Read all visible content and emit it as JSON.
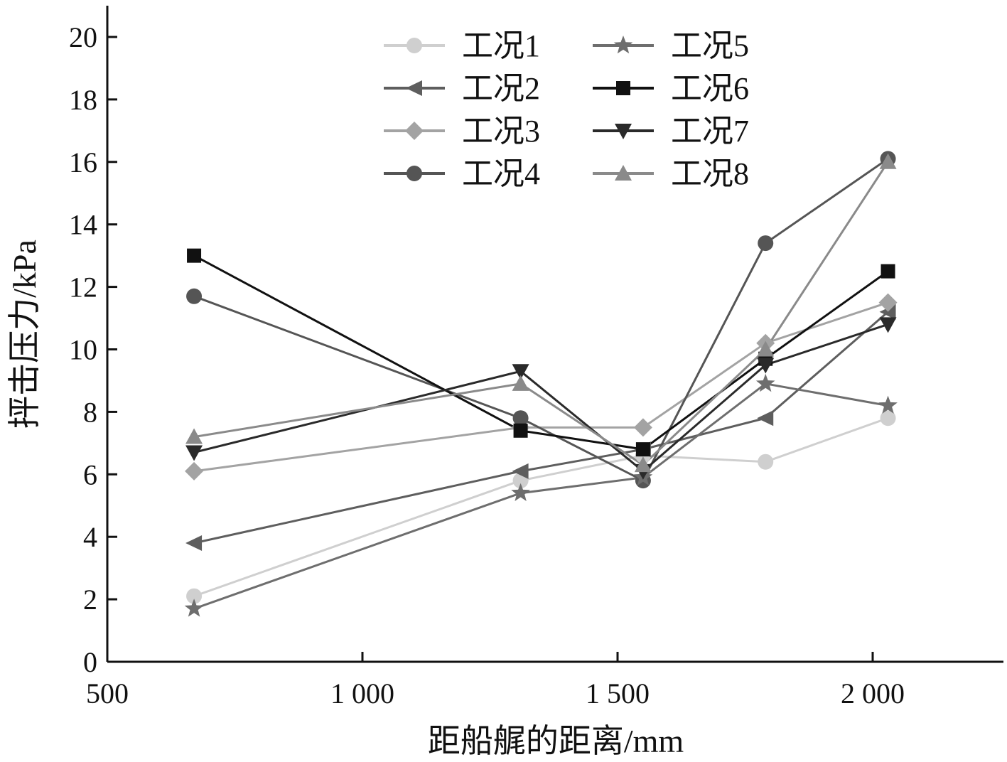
{
  "chart_data": {
    "type": "line",
    "xlabel": "距船艉的距离/mm",
    "ylabel": "抨击压力/kPa",
    "xlim": [
      500,
      2250
    ],
    "ylim": [
      0,
      20
    ],
    "x_ticks": [
      500,
      1000,
      1500,
      2000
    ],
    "x_tick_labels": [
      "500",
      "1 000",
      "1 500",
      "2 000"
    ],
    "y_ticks": [
      0,
      2,
      4,
      6,
      8,
      10,
      12,
      14,
      16,
      18,
      20
    ],
    "y_tick_labels": [
      "0",
      "2",
      "4",
      "6",
      "8",
      "10",
      "12",
      "14",
      "16",
      "18",
      "20"
    ],
    "grid": false,
    "legend_position": "top-center",
    "x": [
      670,
      1310,
      1550,
      1790,
      2030
    ],
    "series": [
      {
        "name": "工况1",
        "marker": "circle",
        "color": "#cfcfcf",
        "values": [
          2.1,
          5.8,
          6.6,
          6.4,
          7.8
        ]
      },
      {
        "name": "工况2",
        "marker": "triangle-left",
        "color": "#5e5e5e",
        "values": [
          3.8,
          6.1,
          6.8,
          7.8,
          11.2
        ]
      },
      {
        "name": "工况3",
        "marker": "diamond",
        "color": "#a3a3a3",
        "values": [
          6.1,
          7.5,
          7.5,
          10.2,
          11.5
        ]
      },
      {
        "name": "工况4",
        "marker": "circle",
        "color": "#555555",
        "values": [
          11.7,
          7.8,
          5.8,
          13.4,
          16.1
        ]
      },
      {
        "name": "工况5",
        "marker": "star",
        "color": "#6e6e6e",
        "values": [
          1.7,
          5.4,
          5.9,
          8.9,
          8.2
        ]
      },
      {
        "name": "工况6",
        "marker": "square",
        "color": "#111111",
        "values": [
          13.0,
          7.4,
          6.8,
          9.7,
          12.5
        ]
      },
      {
        "name": "工况7",
        "marker": "triangle-down",
        "color": "#2a2a2a",
        "values": [
          6.7,
          9.3,
          6.1,
          9.5,
          10.8
        ]
      },
      {
        "name": "工况8",
        "marker": "triangle-up",
        "color": "#8a8a8a",
        "values": [
          7.2,
          8.9,
          6.3,
          10.0,
          16.0
        ]
      }
    ]
  }
}
